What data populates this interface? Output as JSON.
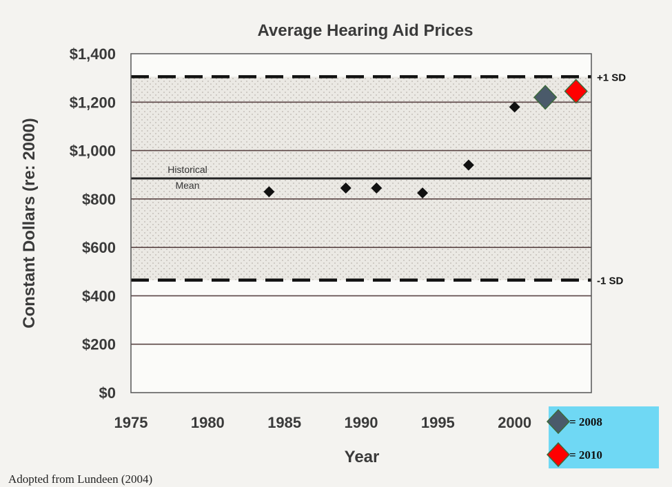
{
  "chart_data": {
    "type": "scatter",
    "title": "Average Hearing Aid Prices",
    "xlabel": "Year",
    "ylabel": "Constant Dollars (re: 2000)",
    "xlim": [
      1975,
      2005
    ],
    "ylim": [
      0,
      1400
    ],
    "x_ticks": [
      1975,
      1980,
      1985,
      1990,
      1995,
      2000
    ],
    "y_ticks": [
      {
        "value": 0,
        "label": "$0"
      },
      {
        "value": 200,
        "label": "$200"
      },
      {
        "value": 400,
        "label": "$400"
      },
      {
        "value": 600,
        "label": "$600"
      },
      {
        "value": 800,
        "label": "$800"
      },
      {
        "value": 1000,
        "label": "$1,000"
      },
      {
        "value": 1200,
        "label": "$1,200"
      },
      {
        "value": 1400,
        "label": "$1,400"
      }
    ],
    "grid": true,
    "series": [
      {
        "color": "#111111",
        "points": [
          {
            "x": 1984,
            "y": 830
          },
          {
            "x": 1989,
            "y": 845
          },
          {
            "x": 1991,
            "y": 845
          },
          {
            "x": 1994,
            "y": 825
          },
          {
            "x": 1997,
            "y": 940
          },
          {
            "x": 2000,
            "y": 1180
          }
        ]
      },
      {
        "name": "2008",
        "color": "#4a5a6a",
        "points": [
          {
            "x": 2002,
            "y": 1220
          }
        ]
      },
      {
        "name": "2010",
        "color": "#ff0000",
        "points": [
          {
            "x": 2004,
            "y": 1245
          }
        ]
      }
    ],
    "reference_lines": [
      {
        "label": "+1 SD",
        "y": 1305,
        "style": "dashed"
      },
      {
        "label_lines": [
          "Historical",
          "Mean"
        ],
        "y": 885,
        "style": "solid"
      },
      {
        "label": "-1 SD",
        "y": 465,
        "style": "dashed"
      }
    ],
    "shaded_band": {
      "from": 465,
      "to": 1305
    },
    "legend": {
      "placement": "bottom-right",
      "background": "#6fd8f4",
      "items": [
        {
          "label": "= 2008",
          "color": "#4a5a6a"
        },
        {
          "label": "= 2010",
          "color": "#ff0000"
        }
      ]
    },
    "source": "Adopted from Lundeen (2004)"
  }
}
